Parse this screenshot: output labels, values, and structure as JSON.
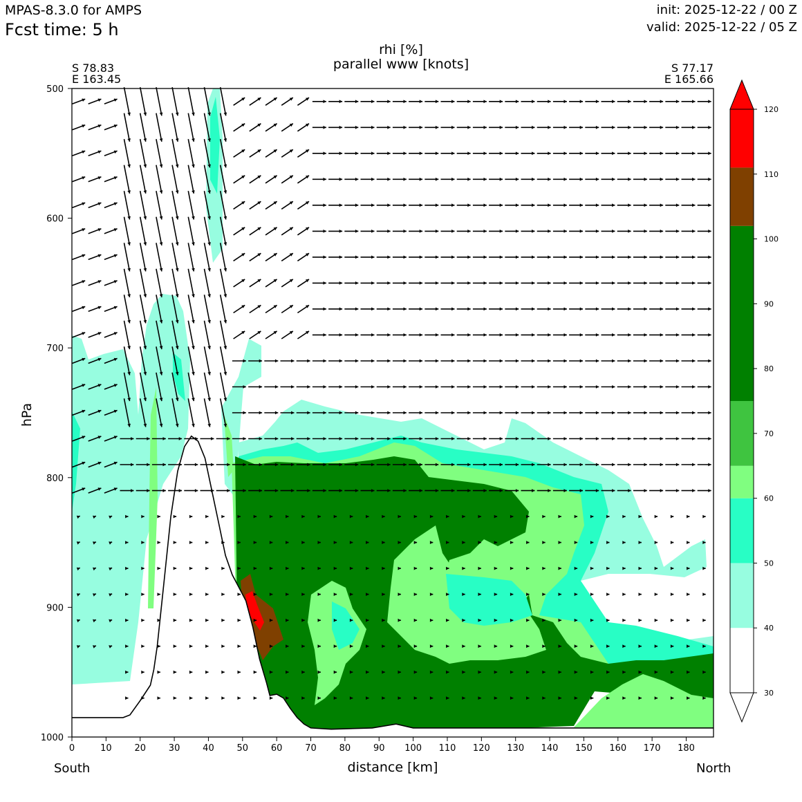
{
  "header": {
    "model": "MPAS-8.3.0 for AMPS",
    "fcst_time": "Fcst time:    5 h",
    "init": "init: 2025-12-22 / 00 Z",
    "valid": "valid: 2025-12-22 / 05 Z"
  },
  "endpoints": {
    "left_lat": "S 78.83",
    "left_lon": "E 163.45",
    "right_lat": "S 77.17",
    "right_lon": "E 165.66",
    "left_dir": "South",
    "right_dir": "North"
  },
  "chart_data": {
    "type": "contour",
    "title": "rhi [%]",
    "subtitle": "parallel www [knots]",
    "xlabel": "distance [km]",
    "ylabel": "hPa",
    "xlim": [
      0,
      188
    ],
    "ylim": [
      1000,
      500
    ],
    "xticks": [
      0,
      10,
      20,
      30,
      40,
      50,
      60,
      70,
      80,
      90,
      100,
      110,
      120,
      130,
      140,
      150,
      160,
      170,
      180
    ],
    "yticks": [
      500,
      600,
      700,
      800,
      900,
      1000
    ],
    "colorbar": {
      "levels": [
        30,
        40,
        50,
        60,
        70,
        80,
        90,
        100,
        110,
        120
      ],
      "bands": [
        {
          "from": 30,
          "to": 40,
          "color": "#ffffff"
        },
        {
          "from": 40,
          "to": 50,
          "color": "#97fde0"
        },
        {
          "from": 50,
          "to": 60,
          "color": "#28fec5"
        },
        {
          "from": 60,
          "to": 65,
          "color": "#80fe80"
        },
        {
          "from": 65,
          "to": 75,
          "color": "#3fc440"
        },
        {
          "from": 75,
          "to": 102,
          "color": "#008000"
        },
        {
          "from": 102,
          "to": 111,
          "color": "#7f4000"
        },
        {
          "from": 111,
          "to": 120,
          "color": "#ff0000"
        }
      ],
      "extend": "both"
    },
    "terrain": [
      [
        0,
        985
      ],
      [
        15,
        985
      ],
      [
        17,
        983
      ],
      [
        20,
        972
      ],
      [
        23,
        960
      ],
      [
        24,
        948
      ],
      [
        25,
        930
      ],
      [
        27,
        880
      ],
      [
        29,
        830
      ],
      [
        31,
        795
      ],
      [
        33,
        776
      ],
      [
        35,
        768
      ],
      [
        37,
        772
      ],
      [
        39,
        785
      ],
      [
        41,
        810
      ],
      [
        43,
        835
      ],
      [
        45,
        860
      ],
      [
        47,
        875
      ],
      [
        49,
        885
      ],
      [
        51,
        895
      ],
      [
        53,
        915
      ],
      [
        55,
        940
      ],
      [
        57,
        958
      ],
      [
        58,
        968
      ],
      [
        60,
        967
      ],
      [
        62,
        970
      ],
      [
        64,
        978
      ],
      [
        66,
        985
      ],
      [
        68,
        990
      ],
      [
        70,
        993
      ],
      [
        76,
        994
      ],
      [
        88,
        993
      ],
      [
        95,
        990
      ],
      [
        100,
        993
      ],
      [
        120,
        993
      ],
      [
        140,
        993
      ],
      [
        160,
        993
      ],
      [
        188,
        993
      ]
    ]
  }
}
